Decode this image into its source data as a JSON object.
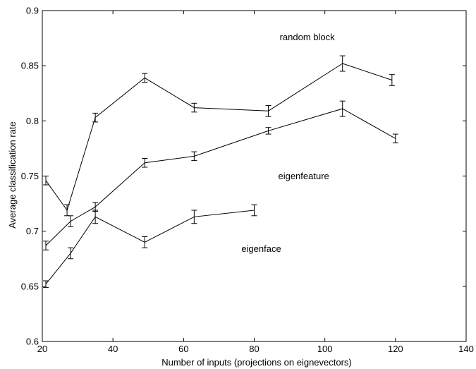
{
  "chart_data": {
    "type": "line",
    "title": "",
    "xlabel": "Number of inputs (projections on eignevectors)",
    "ylabel": "Average classification rate",
    "xlim": [
      20,
      140
    ],
    "ylim": [
      0.6,
      0.9
    ],
    "xticks": [
      20,
      40,
      60,
      80,
      100,
      120,
      140
    ],
    "yticks": [
      0.6,
      0.65,
      0.7,
      0.75,
      0.8,
      0.85,
      0.9
    ],
    "xtick_labels": [
      "20",
      "40",
      "60",
      "80",
      "100",
      "120",
      "140"
    ],
    "ytick_labels": [
      "0.6",
      "0.65",
      "0.7",
      "0.75",
      "0.8",
      "0.85",
      "0.9"
    ],
    "grid": false,
    "legend": "none",
    "line_color": "#000000",
    "error_bars": true,
    "series": [
      {
        "name": "random block",
        "x": [
          21,
          27,
          35,
          49,
          63,
          84,
          105,
          119
        ],
        "y": [
          0.746,
          0.719,
          0.803,
          0.839,
          0.812,
          0.809,
          0.852,
          0.837
        ],
        "err": [
          0.004,
          0.005,
          0.004,
          0.004,
          0.004,
          0.005,
          0.007,
          0.005
        ]
      },
      {
        "name": "eigenfeature",
        "x": [
          21,
          28,
          35,
          49,
          63,
          84,
          105,
          120
        ],
        "y": [
          0.687,
          0.709,
          0.722,
          0.762,
          0.768,
          0.791,
          0.811,
          0.784
        ],
        "err": [
          0.004,
          0.005,
          0.004,
          0.004,
          0.004,
          0.003,
          0.007,
          0.004
        ]
      },
      {
        "name": "eigenface",
        "x": [
          21,
          28,
          35,
          49,
          63,
          80
        ],
        "y": [
          0.652,
          0.68,
          0.713,
          0.69,
          0.713,
          0.719
        ],
        "err": [
          0.003,
          0.005,
          0.006,
          0.005,
          0.006,
          0.005
        ]
      }
    ],
    "annotations": [
      {
        "text": "random block",
        "x": 95,
        "y": 0.876
      },
      {
        "text": "eigenfeature",
        "x": 94,
        "y": 0.75
      },
      {
        "text": "eigenface",
        "x": 82,
        "y": 0.684
      }
    ]
  }
}
